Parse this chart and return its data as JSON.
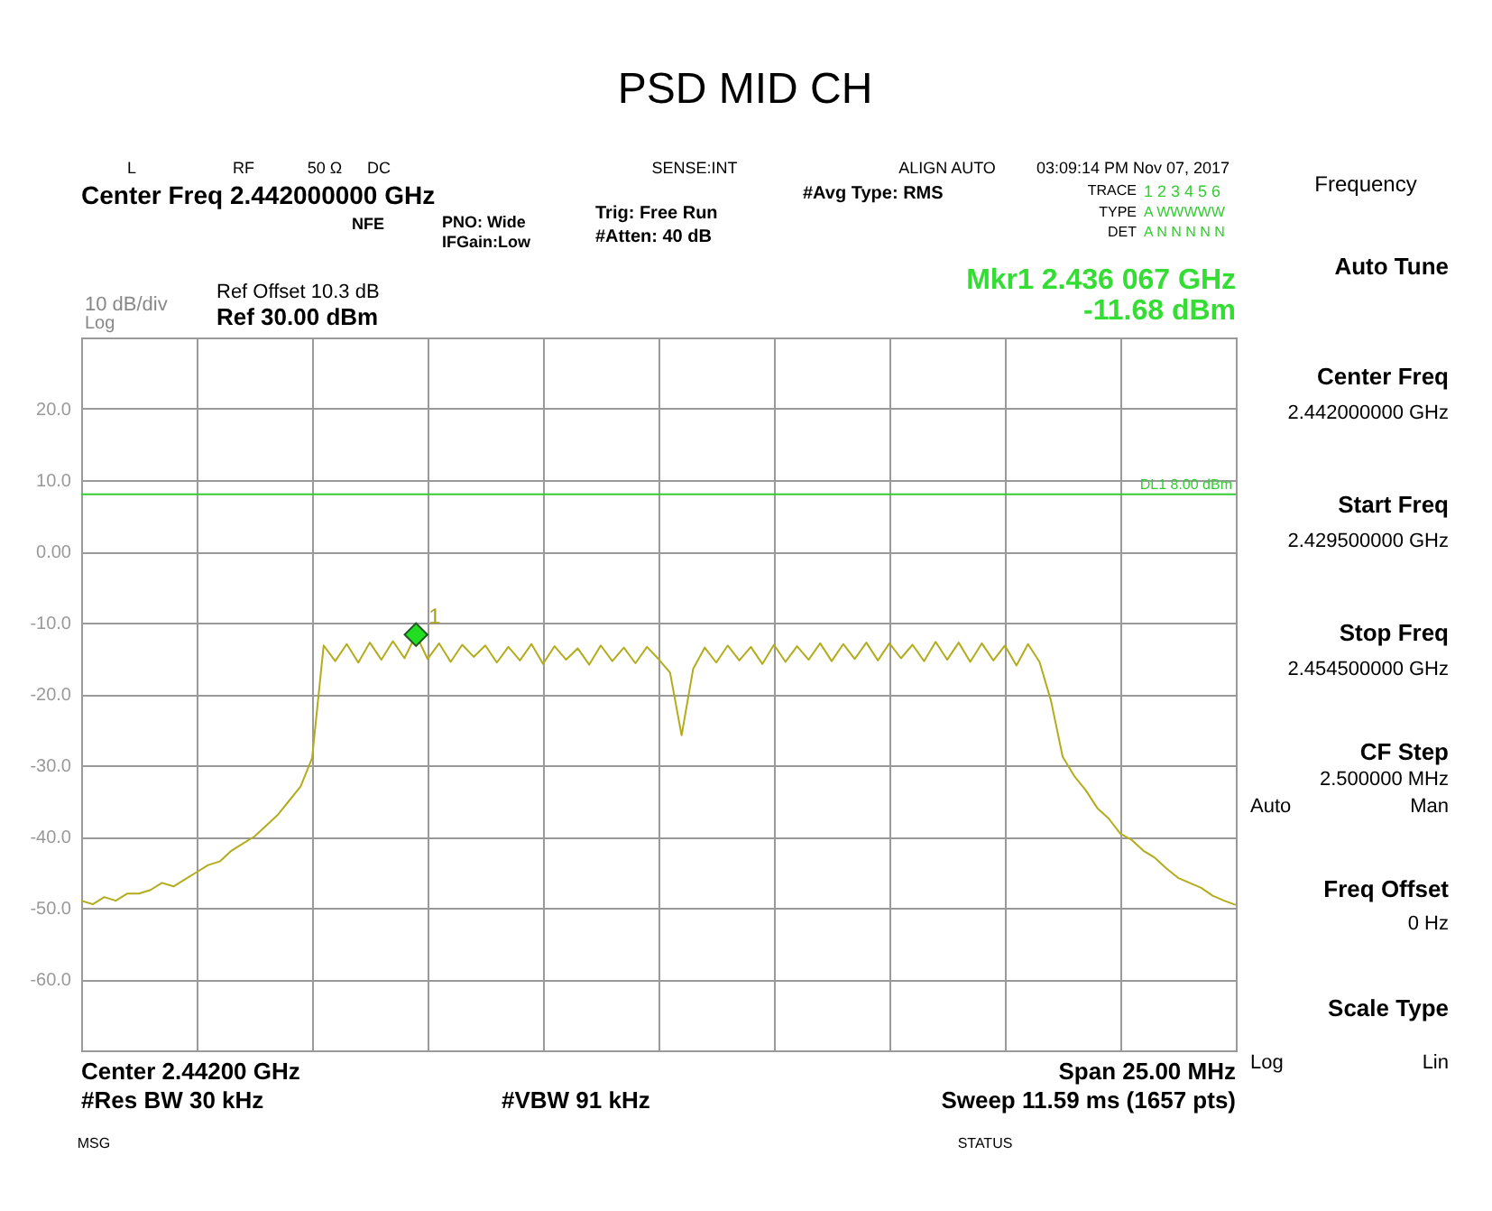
{
  "chart_data": {
    "type": "line",
    "title": "PSD MID CH",
    "categories": [
      null,
      null,
      null,
      null,
      null,
      null,
      null,
      null,
      null,
      null,
      null,
      null,
      null,
      null,
      null,
      null,
      null,
      null,
      null,
      null,
      null,
      null,
      null,
      null,
      null,
      null,
      null,
      null,
      null,
      null,
      null,
      null,
      null,
      null,
      null,
      null,
      null,
      null,
      null,
      null,
      null,
      null,
      null,
      null,
      null,
      null,
      null,
      null,
      null,
      null,
      null,
      null,
      null,
      null,
      null,
      null,
      null,
      null,
      null,
      null,
      null,
      null,
      null,
      null,
      null,
      null,
      null,
      null,
      null,
      null,
      null,
      null,
      null,
      null,
      null,
      null,
      null,
      null,
      null,
      null,
      null,
      null,
      null,
      null,
      null,
      null,
      null,
      null,
      null,
      null,
      null,
      null,
      null,
      null,
      null,
      null,
      null,
      null,
      null,
      null,
      null
    ],
    "series": [
      {
        "color": "#b3ac1c",
        "values": [
          -49,
          -49.5,
          -48.5,
          -49,
          -48,
          -48,
          -47.5,
          -46.5,
          -47,
          -46,
          -45,
          -44,
          -43.5,
          -42,
          -41,
          -40,
          -38.5,
          -37,
          -35,
          -33,
          -29,
          -13.2,
          -15.4,
          -13,
          -15.6,
          -12.8,
          -15.2,
          -12.6,
          -15,
          -11.68,
          -15.1,
          -12.9,
          -15.5,
          -13.1,
          -14.8,
          -13.2,
          -15.6,
          -13.4,
          -15.3,
          -13,
          -15.8,
          -13.3,
          -15.2,
          -13.6,
          -15.9,
          -13.2,
          -15.4,
          -13.5,
          -15.7,
          -13.4,
          -15.1,
          -17,
          -25.8,
          -16.5,
          -13.5,
          -15.6,
          -13.2,
          -15.3,
          -13.4,
          -15.8,
          -13.1,
          -15.5,
          -13.3,
          -15.2,
          -12.9,
          -15.4,
          -13,
          -15.1,
          -12.8,
          -15.3,
          -12.9,
          -15,
          -13.1,
          -15.4,
          -12.7,
          -15.2,
          -12.8,
          -15.5,
          -12.9,
          -15.3,
          -13.2,
          -16,
          -13,
          -15.5,
          -21,
          -28.8,
          -31.5,
          -33.5,
          -36,
          -37.5,
          -39.6,
          -40.5,
          -42,
          -43,
          -44.5,
          -45.8,
          -46.5,
          -47.2,
          -48.3,
          -49,
          -49.6
        ]
      }
    ],
    "ylim": [
      -70,
      30
    ],
    "yticks": [
      {
        "value": 30,
        "label": null
      },
      {
        "value": 20,
        "label": "20.0"
      },
      {
        "value": 10,
        "label": "10.0"
      },
      {
        "value": 0,
        "label": "0.00"
      },
      {
        "value": -10,
        "label": "-10.0"
      },
      {
        "value": -20,
        "label": "-20.0"
      },
      {
        "value": -30,
        "label": "-30.0"
      },
      {
        "value": -40,
        "label": "-40.0"
      },
      {
        "value": -50,
        "label": "-50.0"
      },
      {
        "value": -60,
        "label": "-60.0"
      },
      {
        "value": -70,
        "label": null
      }
    ],
    "grid": true,
    "tick_labels": "y",
    "marker": "none",
    "line_style": "solid",
    "ref_lines": [
      {
        "axis": "y",
        "value": 8,
        "label": "DL1 8.00 dBm",
        "color": "#33cc33"
      }
    ],
    "annotations": [
      "Ref Offset 10.3 dB",
      "Ref 30.00 dBm",
      "10 dB/div",
      "Log",
      "Mkr1 2.436 067 GHz",
      "-11.68 dBm",
      "Center 2.44200 GHz",
      "Span 25.00 MHz",
      "#Res BW 30 kHz",
      "#VBW 91 kHz",
      "Sweep  11.59 ms (1657 pts)",
      "Center Freq 2.442000000 GHz",
      "NFE",
      "PNO: Wide",
      "IFGain:Low",
      "Trig: Free Run",
      "#Atten: 40 dB",
      "#Avg Type: RMS",
      "L",
      "RF",
      "50 Ω",
      "DC",
      "SENSE:INT",
      "ALIGN AUTO",
      "03:09:14 PM Nov 07, 2017",
      "TRACE",
      "1 2 3 4 5 6",
      "TYPE",
      "A WWWWW",
      "DET",
      "A N N N N N",
      "Frequency",
      "Auto Tune",
      "Center Freq",
      "2.442000000 GHz",
      "Start Freq",
      "2.429500000 GHz",
      "Stop Freq",
      "2.454500000 GHz",
      "CF Step",
      "2.500000 MHz",
      "Auto",
      "Man",
      "Freq Offset",
      "0 Hz",
      "Scale Type",
      "Log",
      "Lin",
      "MSG",
      "STATUS",
      {
        "text": "1",
        "y": -11.68
      }
    ]
  }
}
